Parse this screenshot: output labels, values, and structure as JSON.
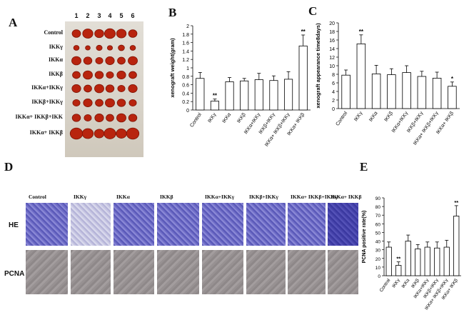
{
  "panel_labels": {
    "a": "A",
    "b": "B",
    "c": "C",
    "d": "D",
    "e": "E"
  },
  "panel_a": {
    "column_numbers": [
      "1",
      "2",
      "3",
      "4",
      "5",
      "6"
    ],
    "row_labels": [
      "Control",
      "IKKγ",
      "IKKα",
      "IKKβ",
      "IKKα+IKKγ",
      "IKKβ+IKKγ",
      "IKKα+ IKKβ+IKK",
      "IKKα+ IKKβ"
    ],
    "colors": {
      "photo_bg": "#d8d3c9",
      "tumor": "#b8240e",
      "tumor_dark": "#7e1405"
    }
  },
  "panel_d": {
    "titles": [
      "Control",
      "IKKγ",
      "IKKα",
      "IKKβ",
      "IKKα+IKKγ",
      "IKKβ+IKKγ",
      "IKKα+ IKKβ+IKKγ",
      "IKKα+ IKKβ"
    ],
    "row_labels": {
      "he": "HE",
      "pcna": "PCNA"
    }
  },
  "chart_data": [
    {
      "id": "B",
      "type": "bar",
      "ylabel": "xenograft weight(gram)",
      "xlabel": "",
      "ylim": [
        0,
        2
      ],
      "yticks": [
        "0",
        "0.2",
        "0.4",
        "0.6",
        "0.8",
        "1",
        "1.2",
        "1.4",
        "1.6",
        "1.8",
        "2"
      ],
      "categories": [
        "Control",
        "IKKγ",
        "IKKα",
        "IKKβ",
        "IKKα+IKKγ",
        "IKKβ+IKKγ",
        "IKKα+ IKKβ+IKKγ",
        "IKKα+ IKKβ"
      ],
      "values": [
        0.75,
        0.21,
        0.67,
        0.69,
        0.72,
        0.7,
        0.73,
        1.52
      ],
      "errors": [
        0.14,
        0.05,
        0.1,
        0.06,
        0.15,
        0.11,
        0.18,
        0.26
      ],
      "significance": [
        "",
        "**",
        "",
        "",
        "",
        "",
        "",
        "**"
      ]
    },
    {
      "id": "C",
      "type": "bar",
      "ylabel": "xenograft appearance time8days)",
      "xlabel": "",
      "ylim": [
        0,
        20
      ],
      "yticks": [
        "0",
        "2",
        "4",
        "6",
        "8",
        "10",
        "12",
        "14",
        "16",
        "18",
        "20"
      ],
      "categories": [
        "Control",
        "IKKγ",
        "IKKα",
        "IKKβ",
        "IKKα+IKKγ",
        "IKKβ+IKKγ",
        "IKKα+ IKKβ+IKKγ",
        "IKKα+ IKKβ"
      ],
      "values": [
        7.8,
        15.1,
        8.1,
        7.9,
        8.4,
        7.5,
        7.1,
        5.2
      ],
      "errors": [
        1.2,
        2.1,
        2.0,
        1.4,
        1.6,
        1.2,
        1.4,
        1.0
      ],
      "significance": [
        "",
        "**",
        "",
        "",
        "",
        "",
        "",
        "*"
      ]
    },
    {
      "id": "E",
      "type": "bar",
      "ylabel": "PCNA positive rate(%)",
      "xlabel": "",
      "ylim": [
        0,
        90
      ],
      "yticks": [
        "0",
        "10",
        "20",
        "30",
        "40",
        "50",
        "60",
        "70",
        "80",
        "90"
      ],
      "categories": [
        "Control",
        "IKKγ",
        "IKKα",
        "IKKβ",
        "IKKα+IKKγ",
        "IKKβ+IKKγ",
        "IKKα+ IKKβ+IKKγ",
        "IKKα+ IKKβ"
      ],
      "values": [
        33,
        12,
        40,
        31,
        33,
        32,
        33,
        69
      ],
      "errors": [
        6,
        4,
        7,
        5,
        6,
        7,
        8,
        12
      ],
      "significance": [
        "",
        "**",
        "",
        "",
        "",
        "",
        "",
        "**"
      ]
    }
  ]
}
